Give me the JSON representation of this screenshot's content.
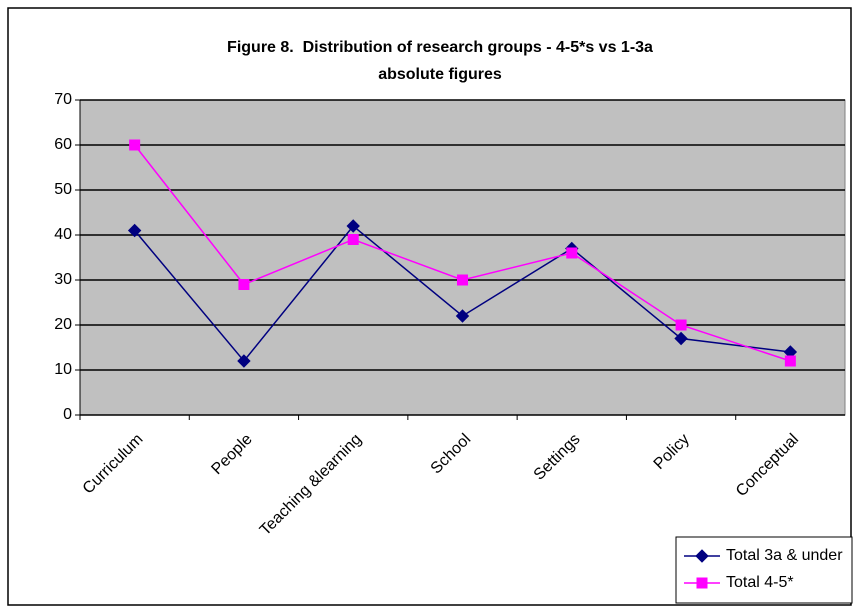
{
  "chart_data": {
    "type": "line",
    "title": "Figure 8.  Distribution of research groups - 4-5*s vs 1-3a absolute figures",
    "categories": [
      "Curriculum",
      "People",
      "Teaching &learning",
      "School",
      "Settings",
      "Policy",
      "Conceptual"
    ],
    "series": [
      {
        "name": "Total 3a & under",
        "color": "#000080",
        "marker": "diamond",
        "values": [
          41,
          12,
          42,
          22,
          37,
          17,
          14
        ]
      },
      {
        "name": "Total 4-5*",
        "color": "#ff00ff",
        "marker": "square",
        "values": [
          60,
          29,
          39,
          30,
          36,
          20,
          12
        ]
      }
    ],
    "ylim": [
      0,
      70
    ],
    "yticks": [
      0,
      10,
      20,
      30,
      40,
      50,
      60,
      70
    ],
    "grid": true,
    "legend": "bottom-right"
  }
}
